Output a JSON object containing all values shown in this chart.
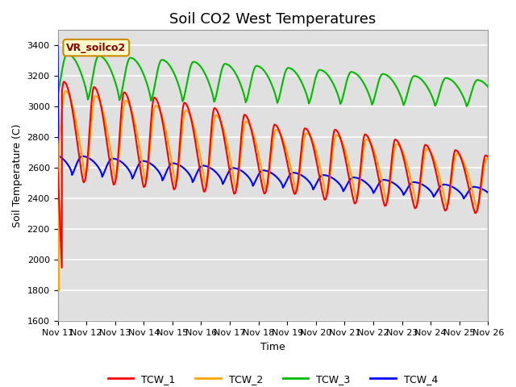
{
  "title": "Soil CO2 West Temperatures",
  "xlabel": "Time",
  "ylabel": "Soil Temperature (C)",
  "ylim": [
    1600,
    3500
  ],
  "xlim": [
    0,
    15
  ],
  "xtick_labels": [
    "Nov 11",
    "Nov 12",
    "Nov 13",
    "Nov 14",
    "Nov 15",
    "Nov 16",
    "Nov 17",
    "Nov 18",
    "Nov 19",
    "Nov 20",
    "Nov 21",
    "Nov 22",
    "Nov 23",
    "Nov 24",
    "Nov 25",
    "Nov 26"
  ],
  "colors": {
    "TCW_1": "#ff0000",
    "TCW_2": "#ffa500",
    "TCW_3": "#00bb00",
    "TCW_4": "#0000ff"
  },
  "annotation_box": "VR_soilco2",
  "annotation_box_color": "#ffffcc",
  "annotation_box_border": "#cc8800",
  "annotation_text_color": "#8b0000",
  "background_plot": "#e0e0e0",
  "background_fig": "#ffffff",
  "grid_color": "#ffffff",
  "title_fontsize": 13,
  "axis_label_fontsize": 9,
  "tick_fontsize": 8
}
